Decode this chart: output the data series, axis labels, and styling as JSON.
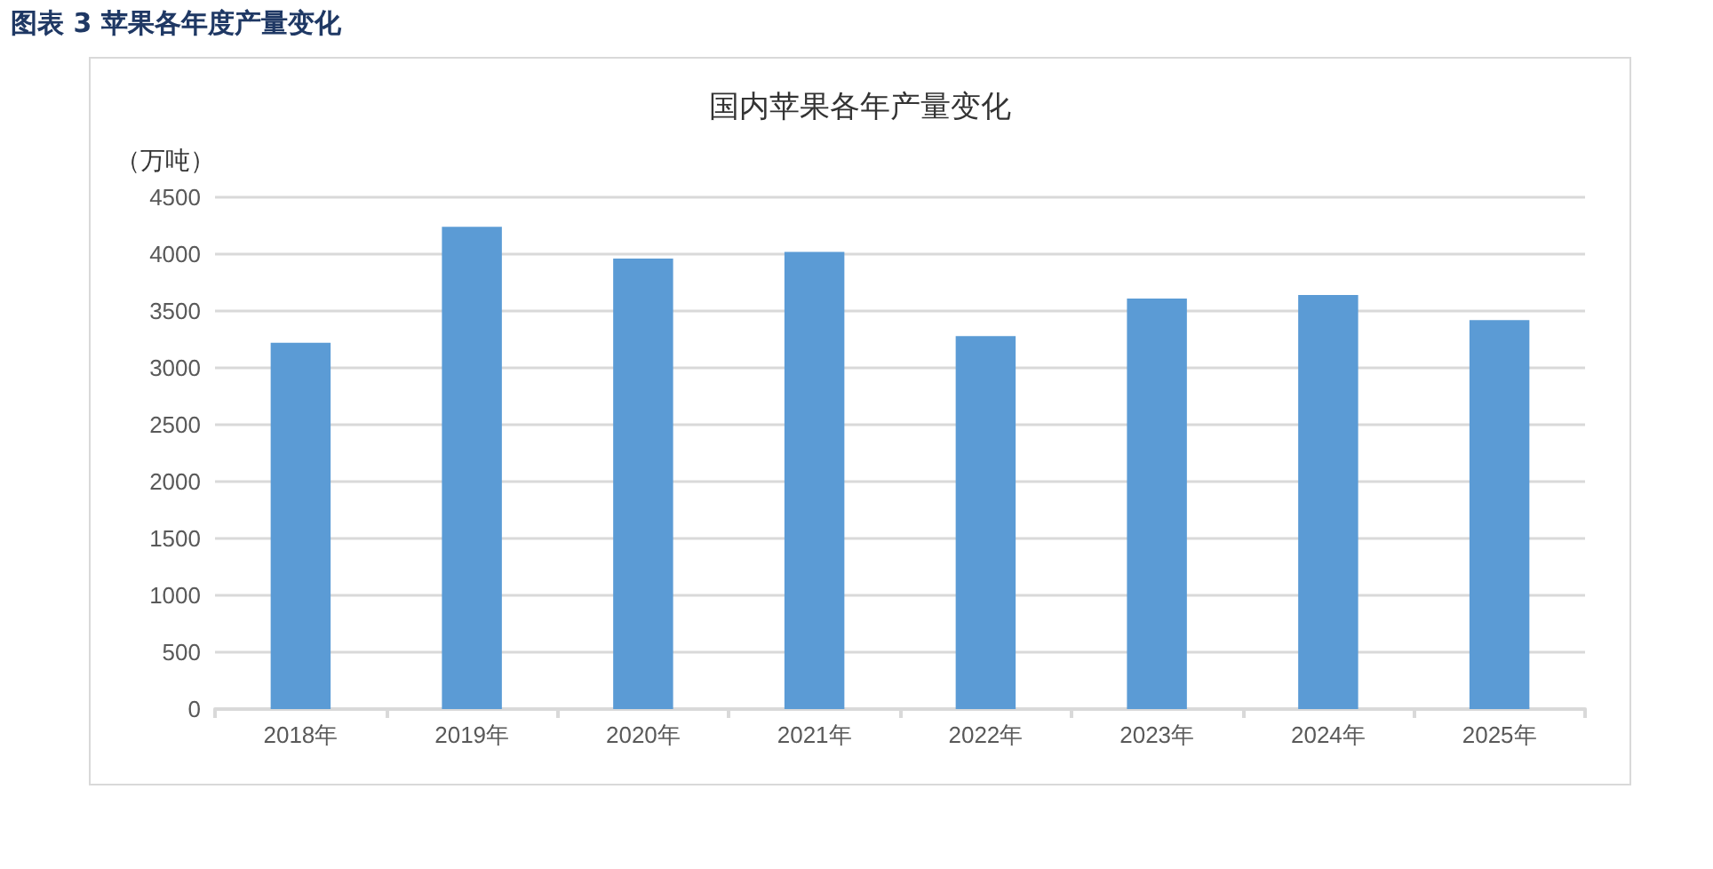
{
  "chart_data": {
    "type": "bar",
    "title": "国内苹果各年产量变化",
    "ylabel": "（万吨）",
    "annotations": [
      "图表 3 苹果各年度产量变化"
    ],
    "categories": [
      "2018年",
      "2019年",
      "2020年",
      "2021年",
      "2022年",
      "2023年",
      "2024年",
      "2025年"
    ],
    "values": [
      3220,
      4240,
      3960,
      4020,
      3280,
      3610,
      3640,
      3420
    ],
    "color": "#5b9bd5",
    "ylim": [
      0,
      4500
    ],
    "yticks": [
      0,
      500,
      1000,
      1500,
      2000,
      2500,
      3000,
      3500,
      4000,
      4500
    ],
    "grid": "y"
  }
}
